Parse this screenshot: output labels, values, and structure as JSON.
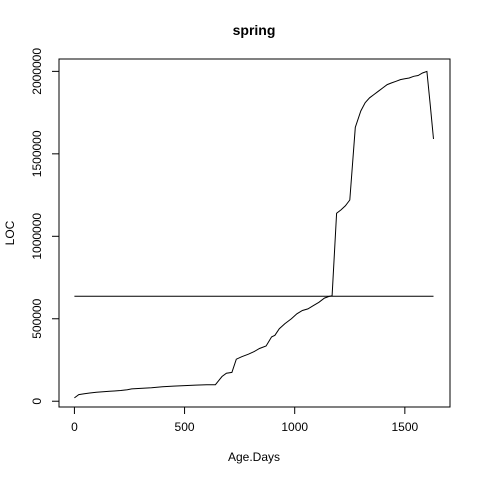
{
  "chart_data": {
    "type": "line",
    "title": "spring",
    "xlabel": "Age.Days",
    "ylabel": "LOC",
    "xlim": [
      -70,
      1705
    ],
    "ylim": [
      -35000,
      2075000
    ],
    "xticks": [
      0,
      500,
      1000,
      1500
    ],
    "xtick_labels": [
      "0",
      "500",
      "1000",
      "1500"
    ],
    "yticks": [
      0,
      500000,
      1000000,
      1500000,
      2000000
    ],
    "ytick_labels": [
      "0",
      "500000",
      "1000000",
      "1500000",
      "2000000"
    ],
    "grid": false,
    "series": [
      {
        "x": [
          0,
          20,
          45,
          70,
          100,
          130,
          160,
          180,
          210,
          240,
          260,
          300,
          350,
          400,
          450,
          500,
          550,
          600,
          640,
          670,
          690,
          715,
          735,
          760,
          790,
          815,
          840,
          870,
          895,
          910,
          930,
          955,
          985,
          1010,
          1035,
          1060,
          1085,
          1110,
          1135,
          1155,
          1170,
          1190,
          1210,
          1230,
          1250,
          1275,
          1300,
          1320,
          1340,
          1360,
          1380,
          1400,
          1420,
          1440,
          1460,
          1480,
          1500,
          1520,
          1540,
          1560,
          1580,
          1600,
          1615,
          1630
        ],
        "y": [
          20000,
          40000,
          45000,
          50000,
          55000,
          58000,
          60000,
          62000,
          65000,
          70000,
          75000,
          78000,
          82000,
          88000,
          92000,
          95000,
          98000,
          100000,
          100000,
          150000,
          170000,
          175000,
          255000,
          270000,
          285000,
          300000,
          320000,
          335000,
          390000,
          400000,
          440000,
          470000,
          500000,
          530000,
          550000,
          560000,
          580000,
          600000,
          625000,
          635000,
          640000,
          1140000,
          1160000,
          1185000,
          1220000,
          1660000,
          1760000,
          1810000,
          1840000,
          1860000,
          1880000,
          1900000,
          1920000,
          1930000,
          1940000,
          1950000,
          1955000,
          1960000,
          1970000,
          1975000,
          1990000,
          2000000,
          1800000,
          1590000
        ]
      },
      {
        "x": [
          0,
          1630
        ],
        "y": [
          637000,
          637000
        ]
      }
    ]
  }
}
